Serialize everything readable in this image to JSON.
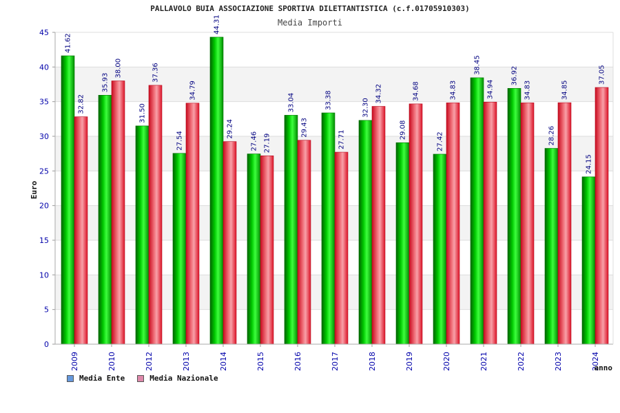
{
  "chart_data": {
    "type": "bar",
    "title": "PALLAVOLO BUIA ASSOCIAZIONE SPORTIVA DILETTANTISTICA (c.f.01705910303)",
    "subtitle": "Media Importi",
    "xlabel": "anno",
    "ylabel": "Euro",
    "ylim": [
      0,
      45
    ],
    "yticks": [
      0,
      5,
      10,
      15,
      20,
      25,
      30,
      35,
      40,
      45
    ],
    "grid": true,
    "legend_position": "bottom-left",
    "categories": [
      "2009",
      "2010",
      "2012",
      "2013",
      "2014",
      "2015",
      "2016",
      "2017",
      "2018",
      "2019",
      "2020",
      "2021",
      "2022",
      "2023",
      "2024"
    ],
    "series": [
      {
        "name": "Media Ente",
        "color": "#00b400",
        "legend_color": "#6699dd",
        "values": [
          41.62,
          35.93,
          31.5,
          27.54,
          44.31,
          27.46,
          33.04,
          33.38,
          32.3,
          29.08,
          27.42,
          38.45,
          36.92,
          28.26,
          24.15
        ],
        "labels": [
          "41.62",
          "35.93",
          "31.50",
          "27.54",
          "44.31",
          "27.46",
          "33.04",
          "33.38",
          "32.30",
          "29.08",
          "27.42",
          "38.45",
          "36.92",
          "28.26",
          "24.15"
        ]
      },
      {
        "name": "Media Nazionale",
        "color": "#e8283c",
        "legend_color": "#dd88aa",
        "values": [
          32.82,
          38.0,
          37.36,
          34.79,
          29.24,
          27.19,
          29.43,
          27.71,
          34.32,
          34.68,
          34.83,
          34.94,
          34.83,
          34.85,
          37.05
        ],
        "labels": [
          "32.82",
          "38.00",
          "37.36",
          "34.79",
          "29.24",
          "27.19",
          "29.43",
          "27.71",
          "34.32",
          "34.68",
          "34.83",
          "34.94",
          "34.83",
          "34.85",
          "37.05"
        ]
      }
    ]
  }
}
